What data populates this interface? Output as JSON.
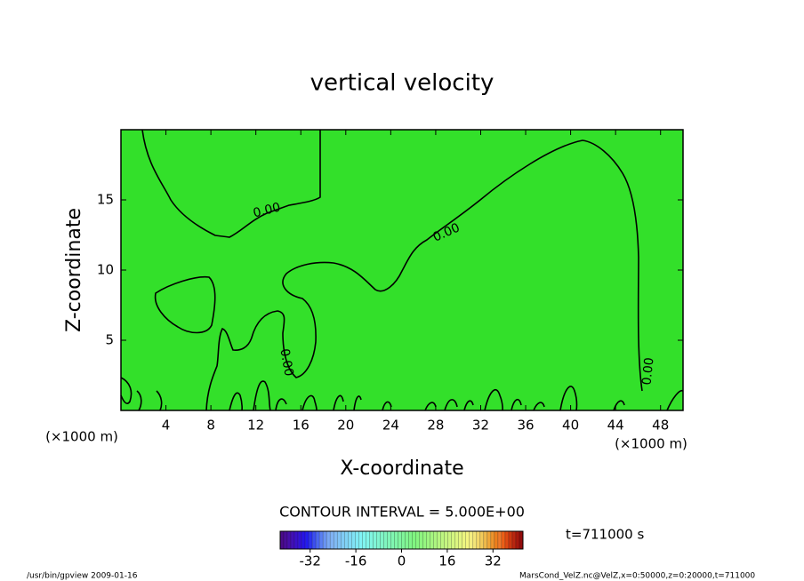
{
  "chart_data": {
    "type": "contour",
    "title": "vertical velocity",
    "x_label": "X-coordinate",
    "y_label": "Z-coordinate",
    "x_unit": "(×1000 m)",
    "xlim": [
      0,
      50
    ],
    "xticks": [
      4,
      8,
      12,
      16,
      20,
      24,
      28,
      32,
      36,
      40,
      44,
      48
    ],
    "ylim": [
      0,
      20
    ],
    "yticks": [
      5,
      10,
      15
    ],
    "levels": [
      0
    ],
    "value_labels": [
      "0.00"
    ],
    "contour_interval_text": "CONTOUR INTERVAL = 5.000E+00",
    "time_text": "t=711000 s",
    "clim": [
      -42.5,
      42.5
    ],
    "cticks": [
      -32,
      -16,
      0,
      16,
      32
    ],
    "color": "#33e02a",
    "footer_left": "/usr/bin/gpview  2009-01-16",
    "footer_right": "MarsCond_VelZ.nc@VelZ,x=0:50000,z=0:20000,t=711000"
  }
}
